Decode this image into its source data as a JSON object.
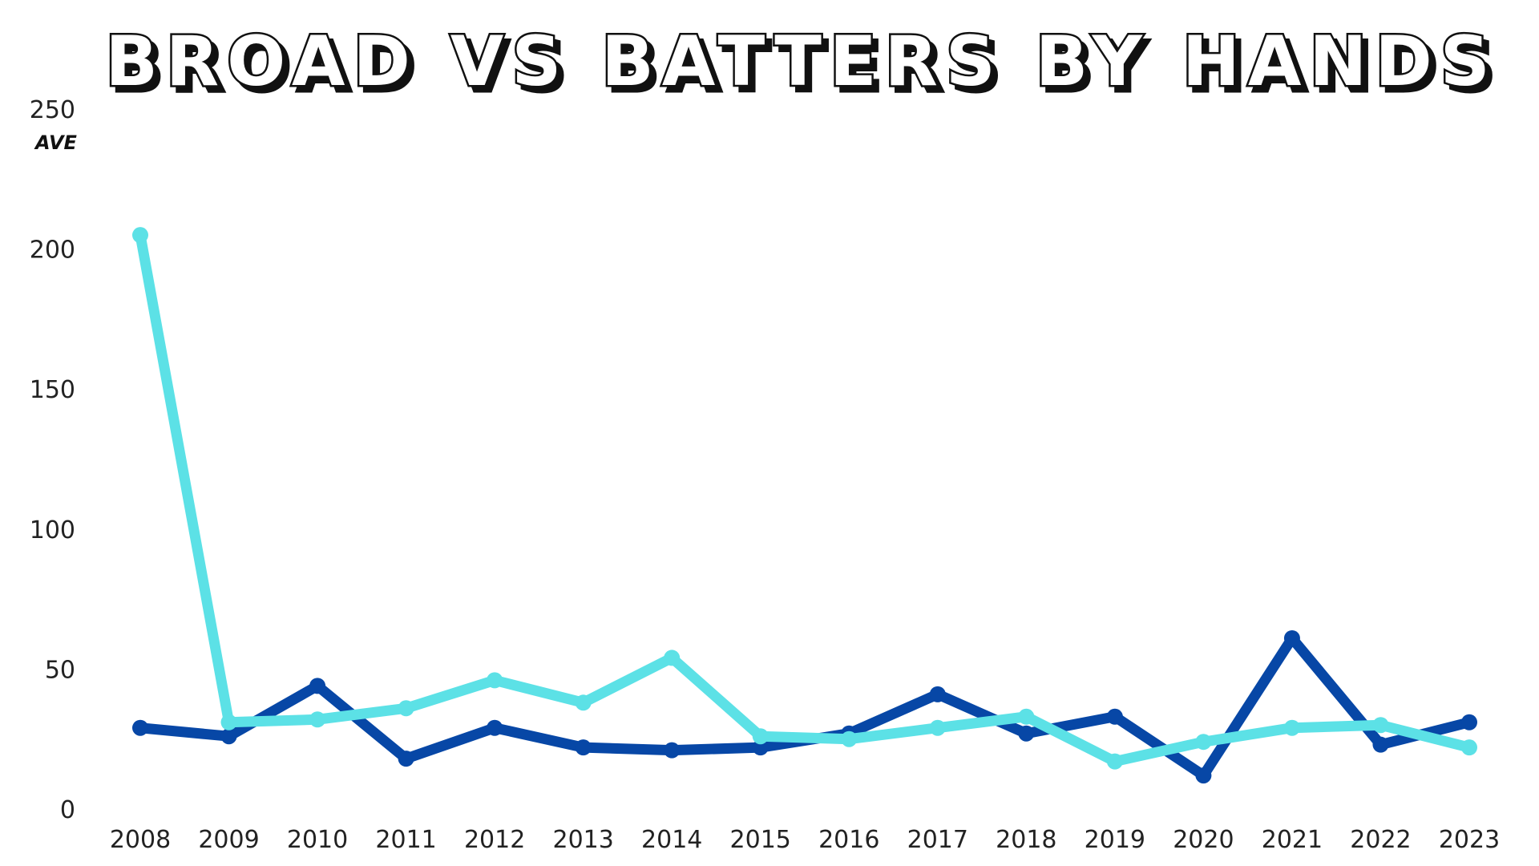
{
  "chart_data": {
    "type": "line",
    "title": "BROAD VS BATTERS BY HANDS",
    "ylabel": "AVE",
    "xlabel": "",
    "categories": [
      "2008",
      "2009",
      "2010",
      "2011",
      "2012",
      "2013",
      "2014",
      "2015",
      "2016",
      "2017",
      "2018",
      "2019",
      "2020",
      "2021",
      "2022",
      "2023"
    ],
    "yticks": [
      "0",
      "50",
      "100",
      "150",
      "200",
      "250"
    ],
    "ylim": [
      0,
      250
    ],
    "grid": false,
    "legend": "none",
    "series": [
      {
        "color": "#0747a6",
        "values": [
          29,
          26,
          44,
          18,
          29,
          22,
          21,
          22,
          27,
          41,
          27,
          33,
          12,
          61,
          23,
          31
        ]
      },
      {
        "color": "#5ce1e6",
        "values": [
          205,
          31,
          32,
          36,
          46,
          38,
          54,
          26,
          25,
          29,
          33,
          17,
          24,
          29,
          30,
          22
        ]
      }
    ]
  }
}
